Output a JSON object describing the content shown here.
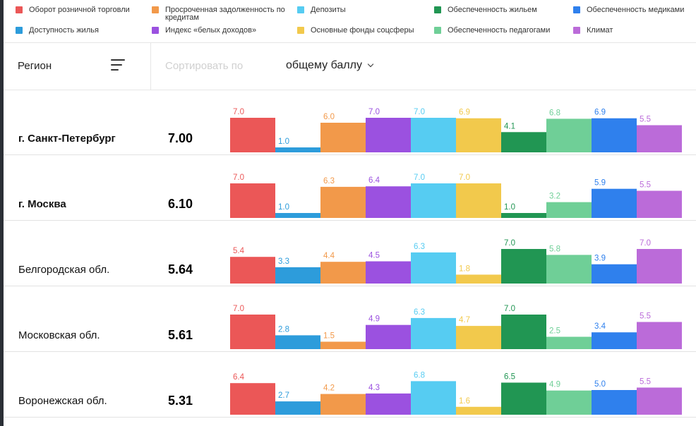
{
  "legend": [
    {
      "label": "Оборот розничной торговли",
      "color": "#eb5757"
    },
    {
      "label": "Просроченная задолженность по кредитам",
      "color": "#f2994a"
    },
    {
      "label": "Депозиты",
      "color": "#56ccf2"
    },
    {
      "label": "Обеспеченность жильем",
      "color": "#219653"
    },
    {
      "label": "Обеспеченность медиками",
      "color": "#2f80ed"
    },
    {
      "label": "Доступность жилья",
      "color": "#2d9cdb"
    },
    {
      "label": "Индекс «белых доходов»",
      "color": "#9b51e0"
    },
    {
      "label": "Основные фонды соцсферы",
      "color": "#f2c94c"
    },
    {
      "label": "Обеспеченность педагогами",
      "color": "#6fcf97"
    },
    {
      "label": "Климат",
      "color": "#bb6bd9"
    }
  ],
  "toolbar": {
    "region_label": "Регион",
    "sort_label": "Сортировать по",
    "sort_value": "общему баллу"
  },
  "chart_data": {
    "type": "bar",
    "title": "",
    "ylim": [
      0,
      7
    ],
    "categories": [
      "Оборот розничной торговли",
      "Доступность жилья",
      "Просроченная задолженность по кредитам",
      "Индекс «белых доходов»",
      "Депозиты",
      "Основные фонды соцсферы",
      "Обеспеченность жильем",
      "Обеспеченность педагогами",
      "Обеспеченность медиками",
      "Климат"
    ],
    "colors": [
      "#eb5757",
      "#2d9cdb",
      "#f2994a",
      "#9b51e0",
      "#56ccf2",
      "#f2c94c",
      "#219653",
      "#6fcf97",
      "#2f80ed",
      "#bb6bd9"
    ],
    "series": [
      {
        "name": "г. Санкт-Петербург",
        "score": "7.00",
        "bold": true,
        "values": [
          7.0,
          1.0,
          6.0,
          7.0,
          7.0,
          6.9,
          4.1,
          6.8,
          6.9,
          5.5
        ],
        "labels": [
          "7.0",
          "1.0",
          "6.0",
          "7.0",
          "7.0",
          "6.9",
          "4.1",
          "6.8",
          "6.9",
          "5.5"
        ]
      },
      {
        "name": "г. Москва",
        "score": "6.10",
        "bold": true,
        "values": [
          7.0,
          1.0,
          6.3,
          6.4,
          7.0,
          7.0,
          1.0,
          3.2,
          5.9,
          5.5
        ],
        "labels": [
          "7.0",
          "1.0",
          "6.3",
          "6.4",
          "7.0",
          "7.0",
          "1.0",
          "3.2",
          "5.9",
          "5.5"
        ]
      },
      {
        "name": "Белгородская обл.",
        "score": "5.64",
        "bold": false,
        "values": [
          5.4,
          3.3,
          4.4,
          4.5,
          6.3,
          1.8,
          7.0,
          5.8,
          3.9,
          7.0
        ],
        "labels": [
          "5.4",
          "3.3",
          "4.4",
          "4.5",
          "6.3",
          "1.8",
          "7.0",
          "5.8",
          "3.9",
          "7.0"
        ]
      },
      {
        "name": "Московская обл.",
        "score": "5.61",
        "bold": false,
        "values": [
          7.0,
          2.8,
          1.5,
          4.9,
          6.3,
          4.7,
          7.0,
          2.5,
          3.4,
          5.5
        ],
        "labels": [
          "7.0",
          "2.8",
          "1.5",
          "4.9",
          "6.3",
          "4.7",
          "7.0",
          "2.5",
          "3.4",
          "5.5"
        ]
      },
      {
        "name": "Воронежская обл.",
        "score": "5.31",
        "bold": false,
        "values": [
          6.4,
          2.7,
          4.2,
          4.3,
          6.8,
          1.6,
          6.5,
          4.9,
          5.0,
          5.5
        ],
        "labels": [
          "6.4",
          "2.7",
          "4.2",
          "4.3",
          "6.8",
          "1.6",
          "6.5",
          "4.9",
          "5.0",
          "5.5"
        ]
      }
    ]
  }
}
